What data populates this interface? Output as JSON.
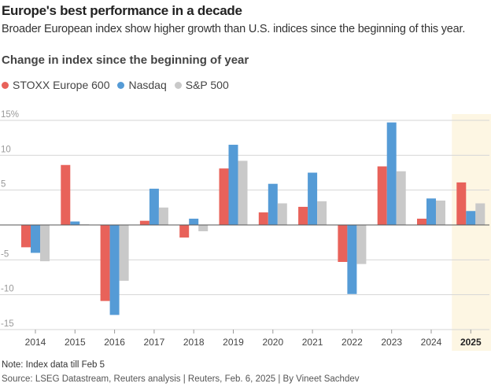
{
  "header": {
    "title": "Europe's best performance in a decade",
    "subtitle": "Broader European index show higher growth than U.S. indices since the beginning of this year."
  },
  "chart_data": {
    "type": "bar",
    "title": "Change in index since the beginning of year",
    "categories": [
      "2014",
      "2015",
      "2016",
      "2017",
      "2018",
      "2019",
      "2020",
      "2021",
      "2022",
      "2023",
      "2024",
      "2025"
    ],
    "highlighted_category": "2025",
    "series": [
      {
        "name": "STOXX Europe 600",
        "color": "#e8625a",
        "values": [
          -3.2,
          8.6,
          -10.9,
          0.6,
          -1.8,
          8.1,
          1.8,
          2.6,
          -5.3,
          8.4,
          0.9,
          6.1
        ]
      },
      {
        "name": "Nasdaq",
        "color": "#559bd6",
        "values": [
          -4.0,
          0.5,
          -12.9,
          5.2,
          0.9,
          11.5,
          5.9,
          7.5,
          -9.9,
          14.7,
          3.8,
          2.0
        ]
      },
      {
        "name": "S&P 500",
        "color": "#c9c9c9",
        "values": [
          -5.2,
          0.1,
          -8.0,
          2.5,
          -0.9,
          9.2,
          3.1,
          3.4,
          -5.6,
          7.7,
          3.5,
          3.1
        ]
      }
    ],
    "ylim": [
      -15,
      15
    ],
    "yticks": [
      15,
      10,
      5,
      0,
      -5,
      -10,
      -15
    ],
    "ytick_labels": [
      "15%",
      "10",
      "5",
      "",
      "-5",
      "-10",
      "-15"
    ],
    "grid": true,
    "legend": "top-left",
    "highlight_color": "#fdf6e3"
  },
  "footer": {
    "note": "Note: Index data till Feb 5",
    "source": "Source: LSEG Datastream, Reuters analysis | Reuters, Feb. 6, 2025 | By Vineet Sachdev"
  }
}
